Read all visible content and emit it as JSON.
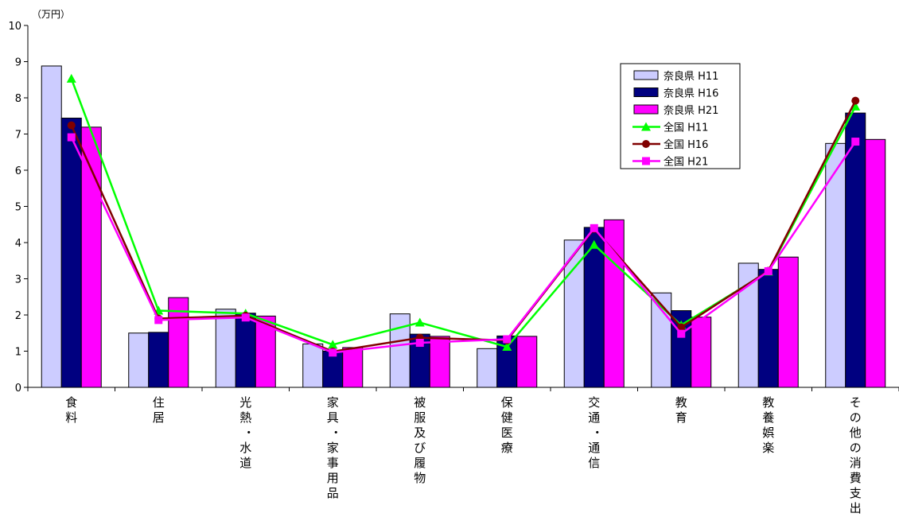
{
  "chart_data": {
    "type": "bar",
    "unit_label": "（万円）",
    "ylim": [
      0,
      10
    ],
    "yticks": [
      "0",
      "1",
      "2",
      "3",
      "4",
      "5",
      "6",
      "7",
      "8",
      "9",
      "10"
    ],
    "categories": [
      "食料",
      "住居",
      "光熱・水道",
      "家具・家事用品",
      "被服及び履物",
      "保健医療",
      "交通・通信",
      "教育",
      "教養娯楽",
      "その他の消費支出"
    ],
    "bar_series": [
      {
        "name": "奈良県 H11",
        "color": "#ccccff",
        "values": [
          8.88,
          1.5,
          2.16,
          1.2,
          2.03,
          1.07,
          4.07,
          2.61,
          3.43,
          6.74
        ]
      },
      {
        "name": "奈良県 H16",
        "color": "#000080",
        "values": [
          7.44,
          1.52,
          2.05,
          1.0,
          1.47,
          1.42,
          4.42,
          2.12,
          3.26,
          7.58
        ]
      },
      {
        "name": "奈良県 H21",
        "color": "#ff00ff",
        "values": [
          7.19,
          2.48,
          1.97,
          1.1,
          1.41,
          1.41,
          4.63,
          1.94,
          3.6,
          6.85
        ]
      }
    ],
    "line_series": [
      {
        "name": "全国 H11",
        "color": "#00ff00",
        "marker": "triangle",
        "values": [
          8.53,
          2.12,
          2.04,
          1.18,
          1.79,
          1.12,
          3.94,
          1.72,
          3.2,
          7.76
        ]
      },
      {
        "name": "全国 H16",
        "color": "#800000",
        "marker": "circle",
        "values": [
          7.24,
          1.9,
          1.98,
          0.99,
          1.37,
          1.3,
          4.38,
          1.66,
          3.22,
          7.92
        ]
      },
      {
        "name": "全国 H21",
        "color": "#ff00ff",
        "marker": "square",
        "values": [
          6.91,
          1.86,
          1.93,
          0.96,
          1.23,
          1.33,
          4.4,
          1.48,
          3.21,
          6.79
        ]
      }
    ],
    "legend_position": "top-right",
    "grid": false
  }
}
